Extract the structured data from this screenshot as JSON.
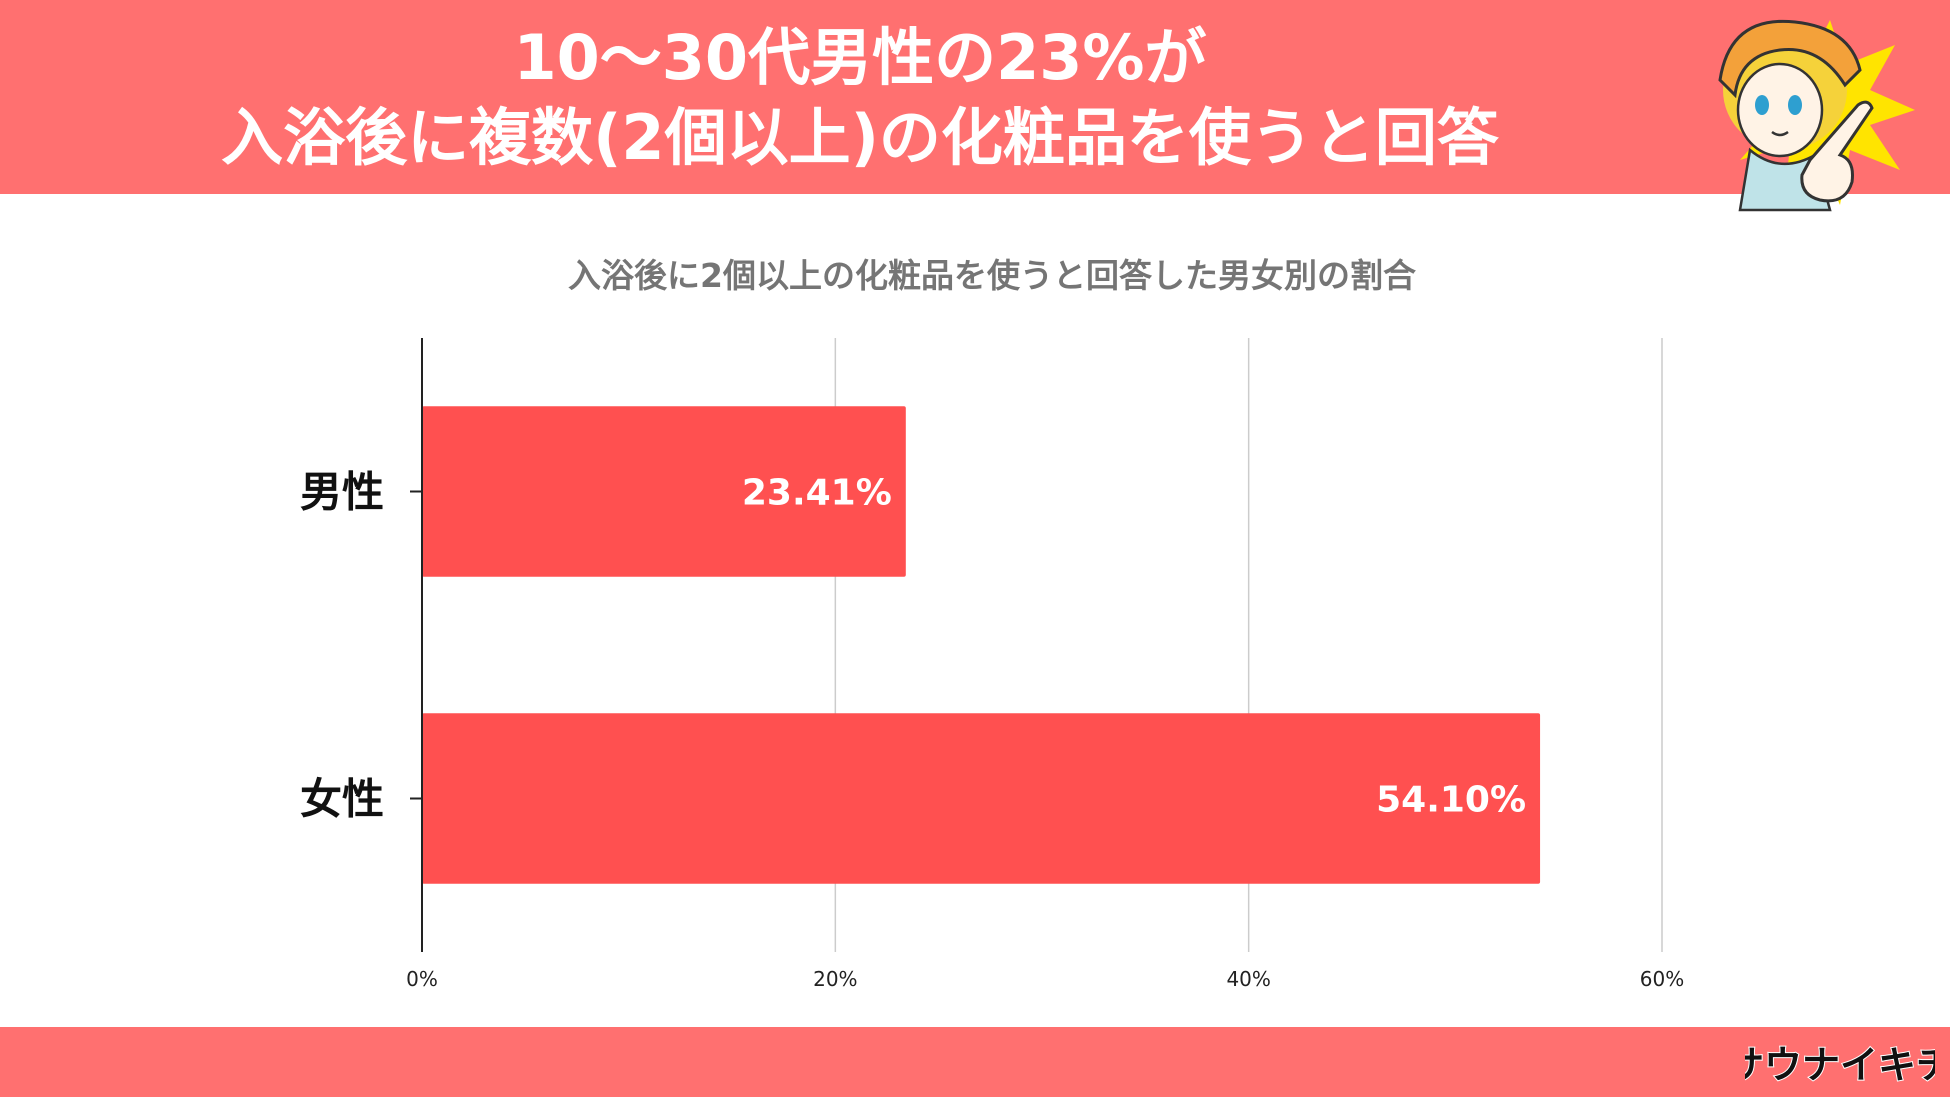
{
  "header": {
    "line1": "10～30代男性の23%が",
    "line2": "入浴後に複数(2個以上)の化粧品を使うと回答"
  },
  "brand": {
    "logo_text": "サウナイキチ"
  },
  "colors": {
    "banner": "#ff7070",
    "bar": "#ff5050",
    "grid": "#cccccc"
  },
  "chart_data": {
    "type": "bar",
    "orientation": "horizontal",
    "title": "入浴後に2個以上の化粧品を使うと回答した男女別の割合",
    "categories": [
      "男性",
      "女性"
    ],
    "values": [
      23.41,
      54.1
    ],
    "value_labels": [
      "23.41%",
      "54.10%"
    ],
    "xlim": [
      0,
      60
    ],
    "xticks": [
      0,
      20,
      40,
      60
    ],
    "xtick_labels": [
      "0%",
      "20%",
      "40%",
      "60%"
    ],
    "grid": true,
    "legend": "none"
  }
}
